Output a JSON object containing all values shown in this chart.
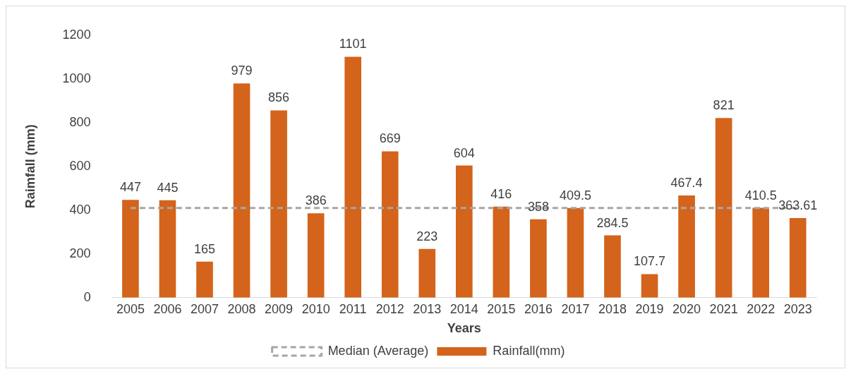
{
  "chart_data": {
    "type": "bar",
    "xlabel": "Years",
    "ylabel": "Raimfall (mm)",
    "categories": [
      "2005",
      "2006",
      "2007",
      "2008",
      "2009",
      "2010",
      "2011",
      "2012",
      "2013",
      "2014",
      "2015",
      "2016",
      "2017",
      "2018",
      "2019",
      "2020",
      "2021",
      "2022",
      "2023"
    ],
    "series": [
      {
        "name": "Rainfall(mm)",
        "color": "#d4631b",
        "values": [
          447,
          445,
          165,
          979,
          856,
          386,
          1101,
          669,
          223,
          604,
          416,
          358,
          409.5,
          284.5,
          107.7,
          467.4,
          821,
          410.5,
          363.61
        ],
        "value_labels": [
          "447",
          "445",
          "165",
          "979",
          "856",
          "386",
          "1101",
          "669",
          "223",
          "604",
          "416",
          "358",
          "409.5",
          "284.5",
          "107.7",
          "467.4",
          "821",
          "410.5",
          "363.61"
        ]
      },
      {
        "name": "Median (Average)",
        "type": "line",
        "color": "#a6a6a6",
        "line_style": "dashed",
        "marker": "none",
        "values": [
          410,
          410,
          410,
          410,
          410,
          410,
          410,
          410,
          410,
          410,
          410,
          410,
          410,
          410,
          410,
          410,
          410,
          410,
          410
        ]
      }
    ],
    "ylim": [
      0,
      1200
    ],
    "yticks": [
      0,
      200,
      400,
      600,
      800,
      1000,
      1200
    ],
    "grid": false,
    "legend": "bottom"
  }
}
